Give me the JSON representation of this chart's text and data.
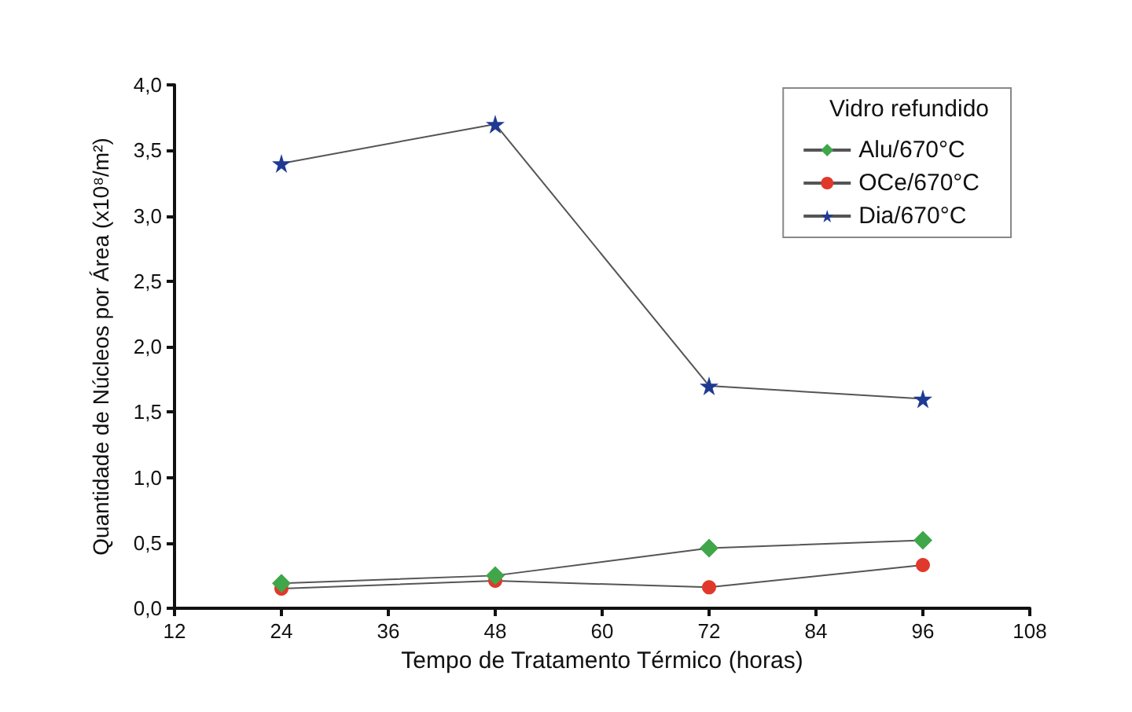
{
  "chart_data": {
    "type": "line",
    "xlabel": "Tempo de Tratamento Térmico (horas)",
    "ylabel": "Quantidade de Núcleos por Área (x10⁸/m²)",
    "legend_title": "Vidro refundido",
    "x": [
      24,
      48,
      72,
      96
    ],
    "series": [
      {
        "name": "Alu/670°C",
        "color": "#3fa64a",
        "marker": "diamond",
        "values": [
          0.19,
          0.25,
          0.46,
          0.52
        ]
      },
      {
        "name": "OCe/670°C",
        "color": "#e0392b",
        "marker": "circle",
        "values": [
          0.15,
          0.21,
          0.16,
          0.33
        ]
      },
      {
        "name": "Dia/670°C",
        "color": "#1f3a93",
        "marker": "star",
        "values": [
          3.4,
          3.7,
          1.7,
          1.6
        ]
      }
    ],
    "xlim": [
      12,
      108
    ],
    "xticks": [
      12,
      24,
      36,
      48,
      60,
      72,
      84,
      96,
      108
    ],
    "ylim": [
      0,
      4
    ],
    "yticks": [
      {
        "value": 0,
        "label": "0,0"
      },
      {
        "value": 0.5,
        "label": "0,5"
      },
      {
        "value": 1,
        "label": "1,0"
      },
      {
        "value": 1.5,
        "label": "1,5"
      },
      {
        "value": 2,
        "label": "2,0"
      },
      {
        "value": 2.5,
        "label": "2,5"
      },
      {
        "value": 3,
        "label": "3,0"
      },
      {
        "value": 3.5,
        "label": "3,5"
      },
      {
        "value": 4,
        "label": "4,0"
      }
    ],
    "grid": false,
    "legend": "top right",
    "line_style": "solid"
  }
}
